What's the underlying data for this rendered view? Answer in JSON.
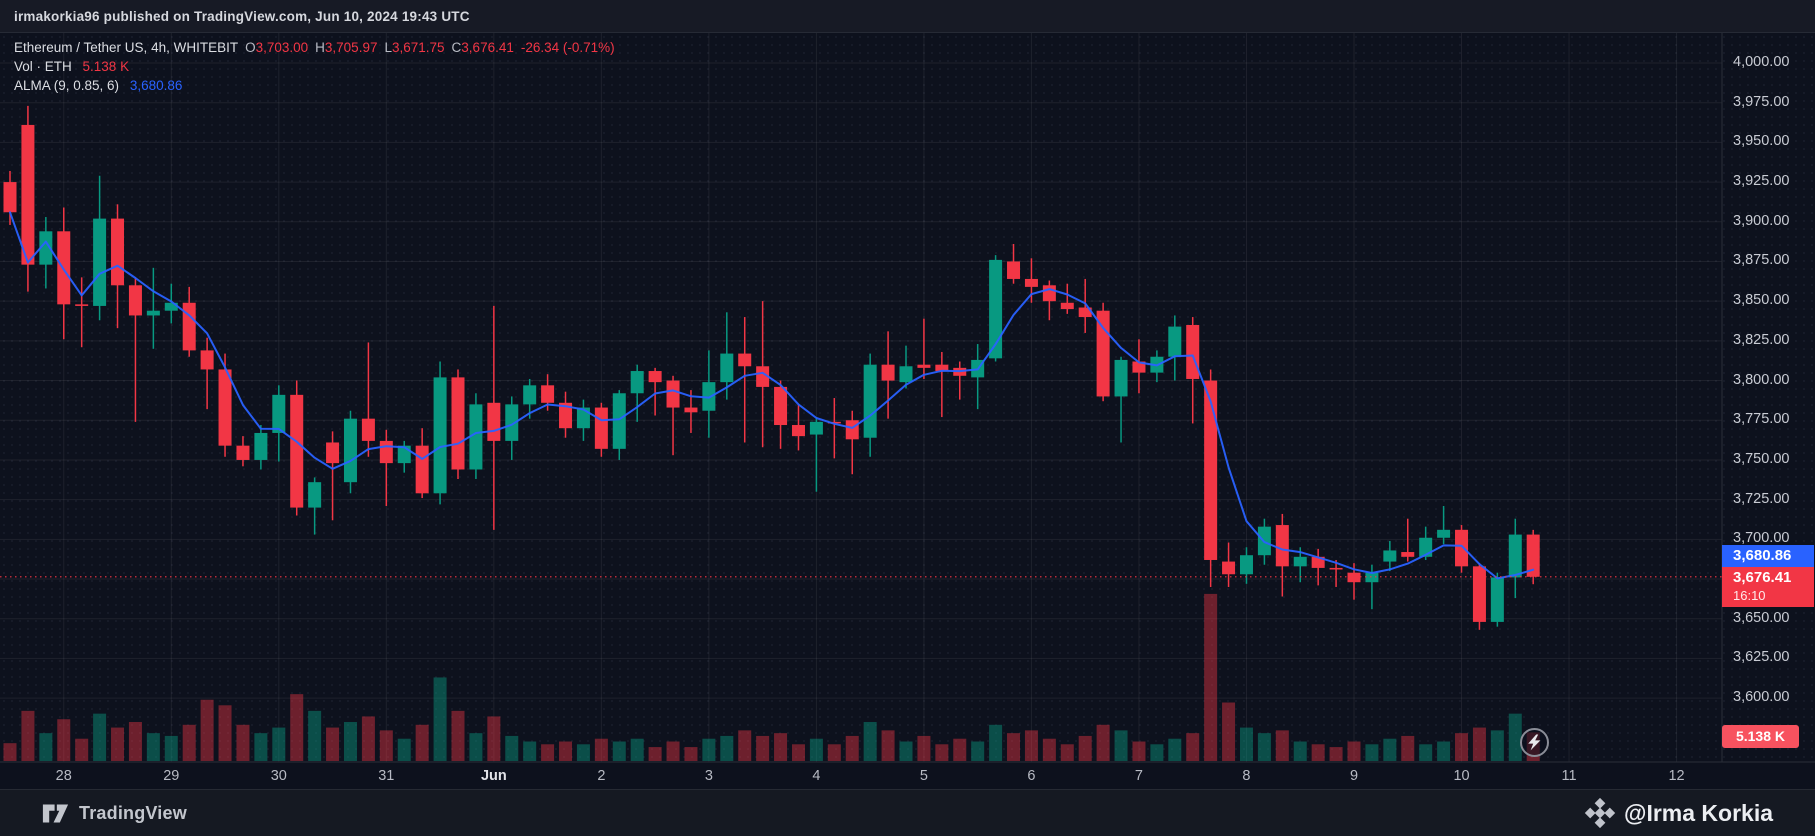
{
  "header": {
    "text": "irmakorkia96 published on TradingView.com, Jun 10, 2024 19:43 UTC"
  },
  "legend": {
    "symbol": "Ethereum / Tether US, 4h, WHITEBIT",
    "ohlc": [
      {
        "k": "O",
        "v": "3,703.00"
      },
      {
        "k": "H",
        "v": "3,705.97"
      },
      {
        "k": "L",
        "v": "3,671.75"
      },
      {
        "k": "C",
        "v": "3,676.41"
      }
    ],
    "change": "-26.34 (-0.71%)",
    "vol_label": "Vol · ETH",
    "vol_value": "5.138 K",
    "alma_label": "ALMA (9, 0.85, 6)",
    "alma_value": "3,680.86"
  },
  "badges": {
    "alma_price": "3,680.86",
    "last_price": "3,676.41",
    "countdown": "16:10",
    "volume": "5.138 K"
  },
  "footer": {
    "brand": "TradingView",
    "handle": "@Irma Korkia"
  },
  "colors": {
    "up": "#089981",
    "down": "#f23645",
    "alma": "#2962ff",
    "vol_up": "rgba(8,153,129,0.45)",
    "vol_down": "rgba(242,54,69,0.42)",
    "grid": "rgba(255,255,255,0.07)",
    "axis_line": "#2a2e39",
    "badge_blue": "#2962ff",
    "badge_red": "#f23645",
    "badge_vol": "#f7525f",
    "background": "#0d111d"
  },
  "chart_data": {
    "type": "candlestick+volume",
    "title": "Ethereum / Tether US, 4h, WHITEBIT",
    "interval": "4h",
    "start": "2024-05-27 12:00 UTC",
    "last_close": 3676.41,
    "last_change": -26.34,
    "last_change_pct": -0.71,
    "alma_overlay": {
      "name": "ALMA",
      "window": 9,
      "offset": 0.85,
      "sigma": 6,
      "last_value": 3680.86
    },
    "last_volume_label": "5.138 K",
    "y_axis": {
      "min": 3600,
      "max": 4000,
      "step": 25,
      "ticks": [
        {
          "v": 4000,
          "label": "4,000.00"
        },
        {
          "v": 3975,
          "label": "3,975.00"
        },
        {
          "v": 3950,
          "label": "3,950.00"
        },
        {
          "v": 3925,
          "label": "3,925.00"
        },
        {
          "v": 3900,
          "label": "3,900.00"
        },
        {
          "v": 3875,
          "label": "3,875.00"
        },
        {
          "v": 3850,
          "label": "3,850.00"
        },
        {
          "v": 3825,
          "label": "3,825.00"
        },
        {
          "v": 3800,
          "label": "3,800.00"
        },
        {
          "v": 3775,
          "label": "3,775.00"
        },
        {
          "v": 3750,
          "label": "3,750.00"
        },
        {
          "v": 3725,
          "label": "3,725.00"
        },
        {
          "v": 3700,
          "label": "3,700.00"
        },
        {
          "v": 3675,
          "label": "3,675.00"
        },
        {
          "v": 3650,
          "label": "3,650.00"
        },
        {
          "v": 3625,
          "label": "3,625.00"
        },
        {
          "v": 3600,
          "label": "3,600.00"
        }
      ]
    },
    "x_axis": {
      "ticks": [
        {
          "i": 3,
          "label": "28"
        },
        {
          "i": 9,
          "label": "29"
        },
        {
          "i": 15,
          "label": "30"
        },
        {
          "i": 21,
          "label": "31"
        },
        {
          "i": 27,
          "label": "Jun",
          "month": true
        },
        {
          "i": 33,
          "label": "2"
        },
        {
          "i": 39,
          "label": "3"
        },
        {
          "i": 45,
          "label": "4"
        },
        {
          "i": 51,
          "label": "5"
        },
        {
          "i": 57,
          "label": "6"
        },
        {
          "i": 63,
          "label": "7"
        },
        {
          "i": 69,
          "label": "8"
        },
        {
          "i": 75,
          "label": "9"
        },
        {
          "i": 81,
          "label": "10"
        },
        {
          "i": 87,
          "label": "11"
        },
        {
          "i": 93,
          "label": "12"
        }
      ]
    },
    "candles": [
      [
        3925,
        3932,
        3898,
        3906,
        3.2
      ],
      [
        3961,
        3973,
        3856,
        3873,
        9
      ],
      [
        3873,
        3903,
        3858,
        3894,
        5
      ],
      [
        3894,
        3909,
        3826,
        3848,
        7.5
      ],
      [
        3848,
        3865,
        3821,
        3847,
        4
      ],
      [
        3847,
        3929,
        3838,
        3902,
        8.5
      ],
      [
        3902,
        3911,
        3833,
        3860,
        6
      ],
      [
        3860,
        3865,
        3774,
        3841,
        7
      ],
      [
        3841,
        3871,
        3820,
        3844,
        5
      ],
      [
        3844,
        3861,
        3836,
        3849,
        4.5
      ],
      [
        3849,
        3859,
        3815,
        3819,
        6.5
      ],
      [
        3819,
        3827,
        3782,
        3807,
        11
      ],
      [
        3807,
        3817,
        3752,
        3759,
        10
      ],
      [
        3759,
        3765,
        3746,
        3750,
        6.5
      ],
      [
        3750,
        3772,
        3744,
        3767,
        5
      ],
      [
        3767,
        3797,
        3749,
        3791,
        6
      ],
      [
        3791,
        3800,
        3715,
        3720,
        12
      ],
      [
        3720,
        3739,
        3703,
        3736,
        9
      ],
      [
        3761,
        3768,
        3712,
        3748,
        6
      ],
      [
        3736,
        3781,
        3729,
        3776,
        7
      ],
      [
        3776,
        3824,
        3752,
        3762,
        8
      ],
      [
        3762,
        3769,
        3721,
        3748,
        5.5
      ],
      [
        3748,
        3762,
        3742,
        3759,
        4
      ],
      [
        3759,
        3770,
        3726,
        3729,
        6.5
      ],
      [
        3729,
        3812,
        3722,
        3802,
        15
      ],
      [
        3802,
        3807,
        3738,
        3744,
        9
      ],
      [
        3744,
        3792,
        3738,
        3785,
        5
      ],
      [
        3786,
        3847,
        3706,
        3762,
        8
      ],
      [
        3762,
        3790,
        3750,
        3785,
        4.5
      ],
      [
        3785,
        3801,
        3776,
        3797,
        3.5
      ],
      [
        3797,
        3804,
        3781,
        3786,
        3
      ],
      [
        3786,
        3793,
        3764,
        3770,
        3.5
      ],
      [
        3770,
        3788,
        3762,
        3783,
        3
      ],
      [
        3783,
        3786,
        3752,
        3757,
        4
      ],
      [
        3757,
        3794,
        3750,
        3792,
        3.5
      ],
      [
        3792,
        3810,
        3774,
        3806,
        4
      ],
      [
        3806,
        3808,
        3778,
        3799,
        2.5
      ],
      [
        3800,
        3803,
        3753,
        3783,
        3.5
      ],
      [
        3783,
        3794,
        3767,
        3780,
        2.5
      ],
      [
        3781,
        3819,
        3764,
        3799,
        4
      ],
      [
        3799,
        3843,
        3788,
        3817,
        4.5
      ],
      [
        3817,
        3840,
        3761,
        3809,
        5.5
      ],
      [
        3809,
        3850,
        3758,
        3796,
        4.5
      ],
      [
        3796,
        3800,
        3757,
        3772,
        5
      ],
      [
        3772,
        3785,
        3756,
        3765,
        3
      ],
      [
        3766,
        3777,
        3730,
        3774,
        4
      ],
      [
        3774,
        3789,
        3751,
        3773,
        3
      ],
      [
        3775,
        3781,
        3741,
        3763,
        4.5
      ],
      [
        3764,
        3817,
        3752,
        3810,
        7
      ],
      [
        3810,
        3831,
        3776,
        3800,
        5.5
      ],
      [
        3799,
        3822,
        3795,
        3809,
        3.5
      ],
      [
        3810,
        3839,
        3801,
        3808,
        4.5
      ],
      [
        3810,
        3818,
        3777,
        3806,
        3
      ],
      [
        3808,
        3812,
        3788,
        3803,
        4
      ],
      [
        3802,
        3823,
        3782,
        3813,
        3.5
      ],
      [
        3814,
        3879,
        3812,
        3876,
        6.5
      ],
      [
        3875,
        3886,
        3861,
        3864,
        5
      ],
      [
        3864,
        3877,
        3849,
        3859,
        5.5
      ],
      [
        3860,
        3863,
        3838,
        3850,
        4
      ],
      [
        3849,
        3861,
        3842,
        3845,
        3
      ],
      [
        3846,
        3864,
        3830,
        3840,
        4.5
      ],
      [
        3844,
        3849,
        3787,
        3790,
        6.5
      ],
      [
        3790,
        3815,
        3761,
        3813,
        5.5
      ],
      [
        3812,
        3826,
        3792,
        3805,
        3.5
      ],
      [
        3805,
        3819,
        3799,
        3815,
        3
      ],
      [
        3815,
        3841,
        3800,
        3834,
        4
      ],
      [
        3835,
        3840,
        3773,
        3801,
        5
      ],
      [
        3800,
        3807,
        3670,
        3687,
        30
      ],
      [
        3686,
        3698,
        3670,
        3678,
        10.5
      ],
      [
        3678,
        3695,
        3672,
        3690,
        6
      ],
      [
        3690,
        3713,
        3684,
        3708,
        5
      ],
      [
        3709,
        3716,
        3664,
        3683,
        5.5
      ],
      [
        3683,
        3695,
        3673,
        3689,
        3.5
      ],
      [
        3689,
        3694,
        3671,
        3682,
        3
      ],
      [
        3682,
        3687,
        3670,
        3681,
        2.5
      ],
      [
        3679,
        3685,
        3662,
        3673,
        3.5
      ],
      [
        3673,
        3684,
        3656,
        3679,
        3
      ],
      [
        3686,
        3699,
        3680,
        3693,
        4
      ],
      [
        3692,
        3713,
        3686,
        3689,
        4.5
      ],
      [
        3689,
        3708,
        3687,
        3701,
        3
      ],
      [
        3701,
        3721,
        3697,
        3706,
        3.5
      ],
      [
        3706,
        3709,
        3679,
        3683,
        5
      ],
      [
        3683,
        3685,
        3643,
        3648,
        6
      ],
      [
        3648,
        3679,
        3645,
        3676,
        5.5
      ],
      [
        3676,
        3713,
        3663,
        3703,
        8.5
      ],
      [
        3703,
        3705.97,
        3671.75,
        3676.41,
        5.138
      ]
    ]
  }
}
